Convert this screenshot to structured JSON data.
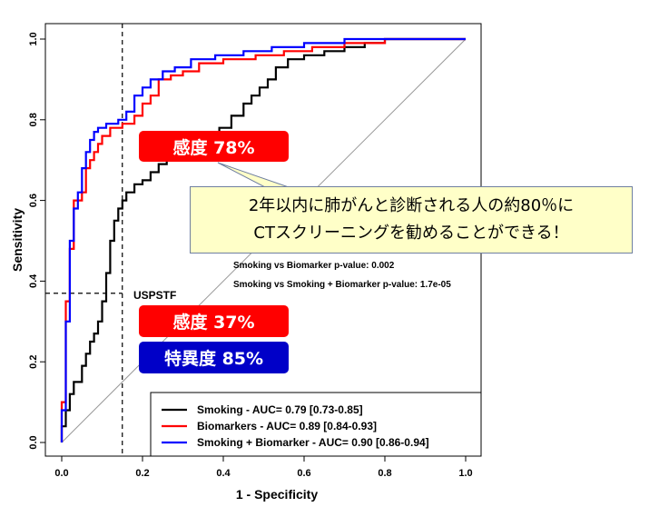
{
  "chart_data": {
    "type": "line",
    "title": "",
    "xlabel": "1 - Specificity",
    "ylabel": "Sensitivity",
    "xlim": [
      0,
      1
    ],
    "ylim": [
      0,
      1
    ],
    "x_ticks": [
      "0.0",
      "0.2",
      "0.4",
      "0.6",
      "0.8",
      "1.0"
    ],
    "y_ticks": [
      "0.0",
      "0.2",
      "0.4",
      "0.6",
      "0.8",
      "1.0"
    ],
    "grid": false,
    "legend_position": "bottom-right",
    "series": [
      {
        "name": "Smoking - AUC=  0.79 [0.73-0.85]",
        "color": "#000000",
        "x": [
          0,
          0,
          0.01,
          0.01,
          0.02,
          0.02,
          0.03,
          0.03,
          0.05,
          0.05,
          0.06,
          0.06,
          0.07,
          0.07,
          0.08,
          0.08,
          0.09,
          0.09,
          0.1,
          0.1,
          0.11,
          0.11,
          0.12,
          0.12,
          0.13,
          0.13,
          0.14,
          0.14,
          0.15,
          0.15,
          0.16,
          0.16,
          0.18,
          0.18,
          0.2,
          0.2,
          0.22,
          0.22,
          0.24,
          0.24,
          0.26,
          0.26,
          0.28,
          0.28,
          0.3,
          0.3,
          0.33,
          0.33,
          0.36,
          0.36,
          0.39,
          0.39,
          0.42,
          0.42,
          0.45,
          0.45,
          0.47,
          0.47,
          0.49,
          0.49,
          0.51,
          0.51,
          0.53,
          0.53,
          0.56,
          0.56,
          0.6,
          0.6,
          0.65,
          0.65,
          0.7,
          0.7,
          0.75,
          0.75,
          0.8,
          0.8,
          1.0
        ],
        "y": [
          0,
          0.04,
          0.04,
          0.08,
          0.08,
          0.12,
          0.12,
          0.15,
          0.15,
          0.19,
          0.19,
          0.22,
          0.22,
          0.25,
          0.25,
          0.27,
          0.27,
          0.3,
          0.3,
          0.35,
          0.35,
          0.42,
          0.42,
          0.5,
          0.5,
          0.55,
          0.55,
          0.58,
          0.58,
          0.6,
          0.6,
          0.62,
          0.62,
          0.64,
          0.64,
          0.65,
          0.65,
          0.67,
          0.67,
          0.69,
          0.69,
          0.7,
          0.7,
          0.71,
          0.71,
          0.72,
          0.72,
          0.74,
          0.74,
          0.76,
          0.76,
          0.78,
          0.78,
          0.81,
          0.81,
          0.84,
          0.84,
          0.86,
          0.86,
          0.88,
          0.88,
          0.9,
          0.9,
          0.93,
          0.93,
          0.95,
          0.95,
          0.96,
          0.96,
          0.97,
          0.97,
          0.98,
          0.98,
          0.99,
          0.99,
          1.0,
          1.0
        ]
      },
      {
        "name": "Biomarkers - AUC=  0.89 [0.84-0.93]",
        "color": "#ff0000",
        "x": [
          0,
          0,
          0.01,
          0.01,
          0.02,
          0.02,
          0.03,
          0.03,
          0.05,
          0.05,
          0.06,
          0.06,
          0.07,
          0.07,
          0.08,
          0.08,
          0.09,
          0.09,
          0.1,
          0.1,
          0.12,
          0.12,
          0.15,
          0.15,
          0.18,
          0.18,
          0.2,
          0.2,
          0.22,
          0.22,
          0.24,
          0.24,
          0.27,
          0.27,
          0.3,
          0.3,
          0.34,
          0.34,
          0.4,
          0.4,
          0.48,
          0.48,
          0.55,
          0.55,
          0.62,
          0.62,
          0.7,
          0.7,
          0.8,
          0.8,
          0.88,
          0.88,
          1.0
        ],
        "y": [
          0,
          0.1,
          0.1,
          0.35,
          0.35,
          0.48,
          0.48,
          0.6,
          0.6,
          0.62,
          0.62,
          0.68,
          0.68,
          0.7,
          0.7,
          0.72,
          0.72,
          0.74,
          0.74,
          0.76,
          0.76,
          0.78,
          0.78,
          0.79,
          0.79,
          0.81,
          0.81,
          0.84,
          0.84,
          0.86,
          0.86,
          0.9,
          0.9,
          0.91,
          0.91,
          0.92,
          0.92,
          0.94,
          0.94,
          0.95,
          0.95,
          0.96,
          0.96,
          0.97,
          0.97,
          0.98,
          0.98,
          0.99,
          0.99,
          1.0,
          1.0,
          1.0,
          1.0
        ]
      },
      {
        "name": "Smoking + Biomarker - AUC=  0.90 [0.86-0.94]",
        "color": "#0000ff",
        "x": [
          0,
          0,
          0.01,
          0.01,
          0.02,
          0.02,
          0.03,
          0.03,
          0.04,
          0.04,
          0.05,
          0.05,
          0.06,
          0.06,
          0.07,
          0.07,
          0.08,
          0.08,
          0.09,
          0.09,
          0.11,
          0.11,
          0.14,
          0.14,
          0.16,
          0.16,
          0.18,
          0.18,
          0.2,
          0.2,
          0.22,
          0.22,
          0.25,
          0.25,
          0.28,
          0.28,
          0.32,
          0.32,
          0.38,
          0.38,
          0.45,
          0.45,
          0.52,
          0.52,
          0.6,
          0.6,
          0.7,
          0.7,
          0.75,
          0.75,
          1.0
        ],
        "y": [
          0,
          0.08,
          0.08,
          0.3,
          0.3,
          0.5,
          0.5,
          0.58,
          0.58,
          0.62,
          0.62,
          0.68,
          0.68,
          0.72,
          0.72,
          0.75,
          0.75,
          0.77,
          0.77,
          0.78,
          0.78,
          0.79,
          0.79,
          0.8,
          0.8,
          0.82,
          0.82,
          0.86,
          0.86,
          0.88,
          0.88,
          0.9,
          0.9,
          0.92,
          0.92,
          0.93,
          0.93,
          0.95,
          0.95,
          0.96,
          0.96,
          0.97,
          0.97,
          0.98,
          0.98,
          0.99,
          0.99,
          1.0,
          1.0,
          1.0,
          1.0
        ]
      }
    ],
    "reference_lines": {
      "vertical_x": 0.15,
      "horizontal_y": 0.37
    },
    "annotations": {
      "uspstf_label": "USPSTF",
      "pvalue_1": "Smoking vs Biomarker p-value: 0.002",
      "pvalue_2": "Smoking vs Smoking + Biomarker p-value: 1.7e-05"
    }
  },
  "callouts": {
    "sensitivity_78": "感度 78%",
    "sensitivity_37": "感度 37%",
    "specificity_85": "特異度 85%"
  },
  "note": {
    "line1": "2年以内に肺がんと診断される人の約80％に",
    "line2": "CTスクリーニングを勧めることができる！"
  }
}
